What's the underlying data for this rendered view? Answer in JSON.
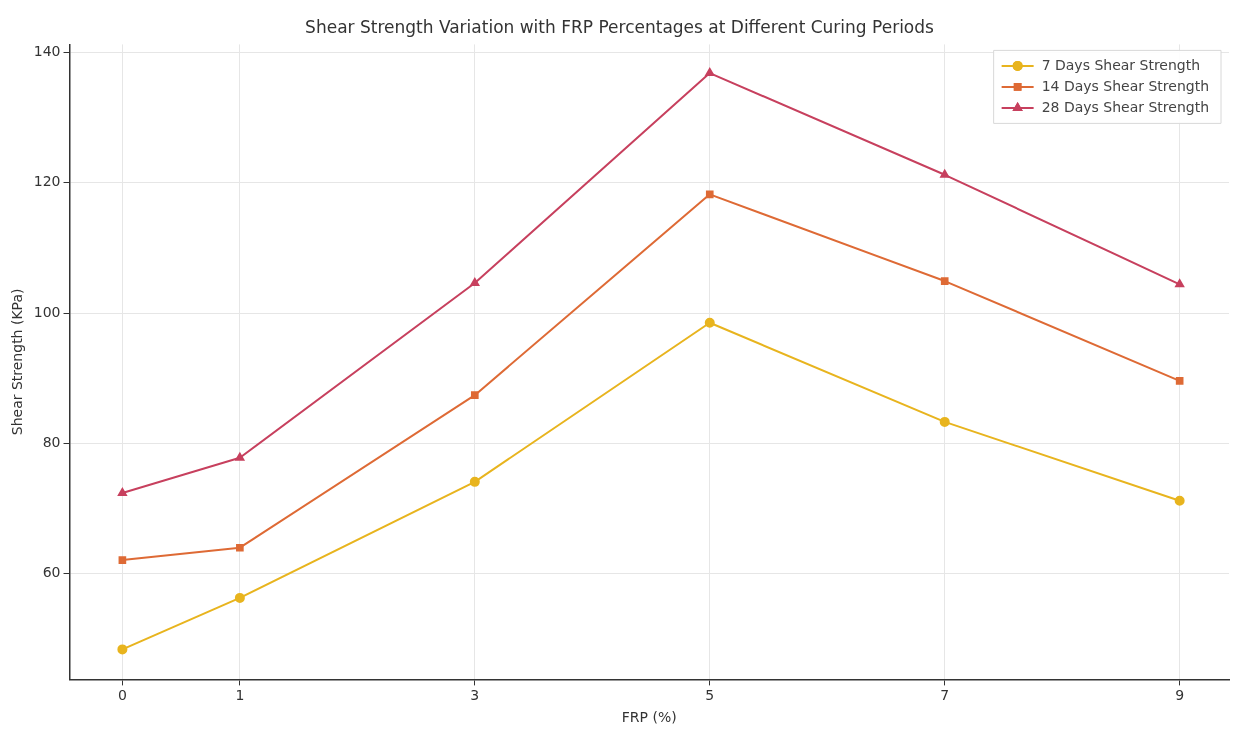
{
  "chart_data": {
    "type": "line",
    "title": "Shear Strength Variation with FRP Percentages at Different Curing Periods",
    "xlabel": "FRP (%)",
    "ylabel": "Shear Strength (KPa)",
    "x": [
      0,
      1,
      3,
      5,
      7,
      9
    ],
    "series": [
      {
        "name": "7 Days Shear Strength",
        "color": "#e8b41e",
        "marker": "circle",
        "values": [
          48.4,
          56.3,
          74.1,
          98.5,
          83.3,
          71.2
        ]
      },
      {
        "name": "14 Days Shear Strength",
        "color": "#de6a35",
        "marker": "square",
        "values": [
          62.1,
          64.0,
          87.4,
          118.2,
          104.9,
          89.6
        ]
      },
      {
        "name": "28 Days Shear Strength",
        "color": "#c7405e",
        "marker": "triangle",
        "values": [
          72.4,
          77.8,
          104.6,
          136.8,
          121.2,
          104.4
        ]
      }
    ],
    "xlim": [
      -0.45,
      9.42
    ],
    "xticks": [
      0,
      1,
      3,
      5,
      7,
      9
    ],
    "ylim": [
      43.8,
      141.2
    ],
    "yticks": [
      60,
      80,
      100,
      120,
      140
    ],
    "grid": true,
    "legend": "top right",
    "line_style": "solid"
  }
}
